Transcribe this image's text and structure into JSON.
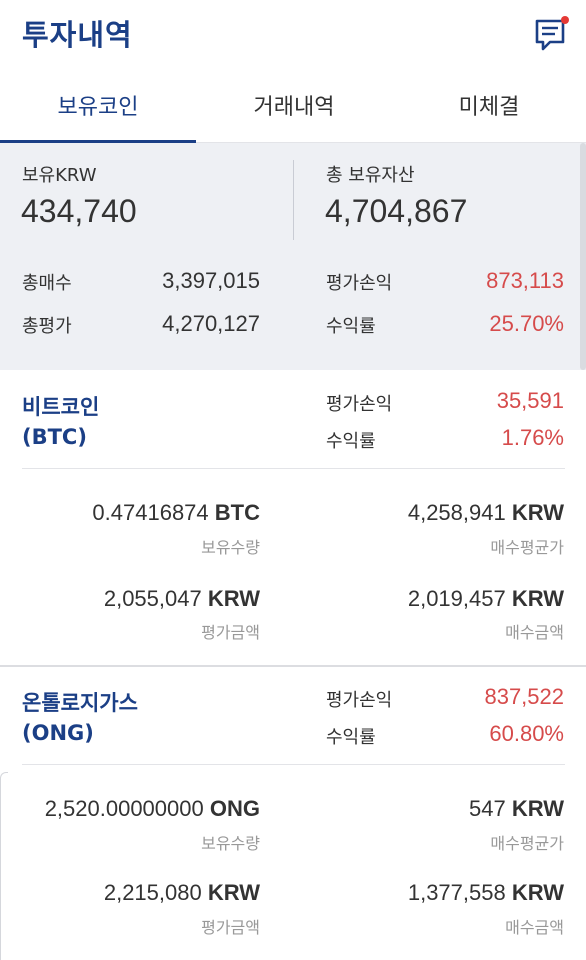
{
  "header": {
    "title": "투자내역"
  },
  "tabs": [
    {
      "label": "보유코인",
      "active": true
    },
    {
      "label": "거래내역",
      "active": false
    },
    {
      "label": "미체결",
      "active": false
    }
  ],
  "summary": {
    "krw_label": "보유KRW",
    "krw_value": "434,740",
    "total_assets_label": "총 보유자산",
    "total_assets_value": "4,704,867",
    "total_buy_label": "총매수",
    "total_buy_value": "3,397,015",
    "total_eval_label": "총평가",
    "total_eval_value": "4,270,127",
    "eval_pnl_label": "평가손익",
    "eval_pnl_value": "873,113",
    "return_label": "수익률",
    "return_value": "25.70%"
  },
  "coins": [
    {
      "name_line1": "비트코인",
      "name_line2": "(BTC)",
      "pnl_label": "평가손익",
      "pnl_value": "35,591",
      "return_label": "수익률",
      "return_value": "1.76%",
      "holding_amount": "0.47416874",
      "holding_unit": "BTC",
      "holding_caption": "보유수량",
      "avg_price": "4,258,941",
      "avg_price_unit": "KRW",
      "avg_price_caption": "매수평균가",
      "eval_amount": "2,055,047",
      "eval_unit": "KRW",
      "eval_caption": "평가금액",
      "buy_amount": "2,019,457",
      "buy_unit": "KRW",
      "buy_caption": "매수금액"
    },
    {
      "name_line1": "온톨로지가스",
      "name_line2": "(ONG)",
      "pnl_label": "평가손익",
      "pnl_value": "837,522",
      "return_label": "수익률",
      "return_value": "60.80%",
      "holding_amount": "2,520.00000000",
      "holding_unit": "ONG",
      "holding_caption": "보유수량",
      "avg_price": "547",
      "avg_price_unit": "KRW",
      "avg_price_caption": "매수평균가",
      "eval_amount": "2,215,080",
      "eval_unit": "KRW",
      "eval_caption": "평가금액",
      "buy_amount": "1,377,558",
      "buy_unit": "KRW",
      "buy_caption": "매수금액"
    }
  ],
  "colors": {
    "brand": "#1b3f86",
    "profit_red": "#d64b4b",
    "summary_bg": "#eef0f4",
    "notification_dot": "#e53935"
  },
  "icons": {
    "messages": "chat-bubble-icon"
  }
}
